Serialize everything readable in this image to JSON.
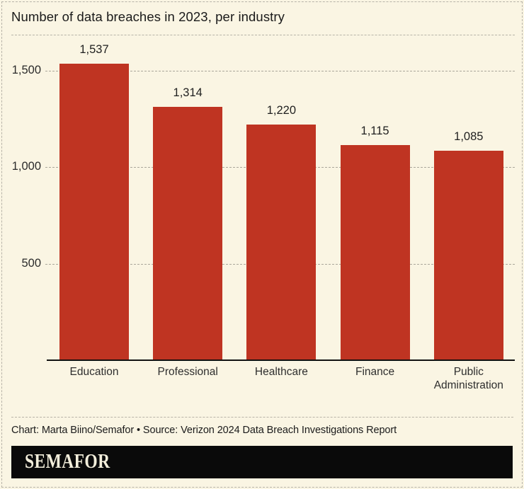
{
  "title": "Number of data breaches in 2023, per industry",
  "chart_data": {
    "type": "bar",
    "categories": [
      "Education",
      "Professional",
      "Healthcare",
      "Finance",
      "Public Administration"
    ],
    "values": [
      1537,
      1314,
      1220,
      1115,
      1085
    ],
    "value_labels": [
      "1,537",
      "1,314",
      "1,220",
      "1,115",
      "1,085"
    ],
    "title": "Number of data breaches in 2023, per industry",
    "xlabel": "",
    "ylabel": "",
    "yticks": [
      500,
      1000,
      1500
    ],
    "ytick_labels": [
      "500",
      "1,000",
      "1,500"
    ],
    "ylim": [
      0,
      1650
    ],
    "grid": "horizontal-dashed",
    "legend": "none",
    "bar_color": "#bf3422"
  },
  "footer": {
    "credit": "Chart: Marta Biino/Semafor • Source: Verizon 2024 Data Breach Investigations Report",
    "brand": "SEMAFOR"
  },
  "colors": {
    "background": "#faf5e3",
    "bar": "#bf3422",
    "title_text": "#1a1a1a",
    "grid": "#aaa79b",
    "border_dash": "#b7b3a8",
    "axis_line": "#111111",
    "brand_bar_bg": "#0a0a0a",
    "brand_text": "#f3eedb"
  }
}
